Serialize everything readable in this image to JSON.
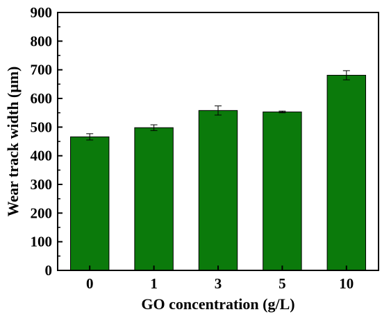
{
  "chart_data": {
    "type": "bar",
    "title": "",
    "xlabel": "GO concentration (g/L)",
    "ylabel": "Wear track width (μm)",
    "categories": [
      "0",
      "1",
      "3",
      "5",
      "10"
    ],
    "values": [
      466,
      498,
      558,
      553,
      681
    ],
    "errors": [
      11,
      10,
      16,
      3,
      16
    ],
    "ylim": [
      0,
      900
    ],
    "yticks": [
      "0",
      "100",
      "200",
      "300",
      "400",
      "500",
      "600",
      "700",
      "800",
      "900"
    ],
    "bar_color": "#0b7a0b",
    "grid": false,
    "legend": "none"
  }
}
